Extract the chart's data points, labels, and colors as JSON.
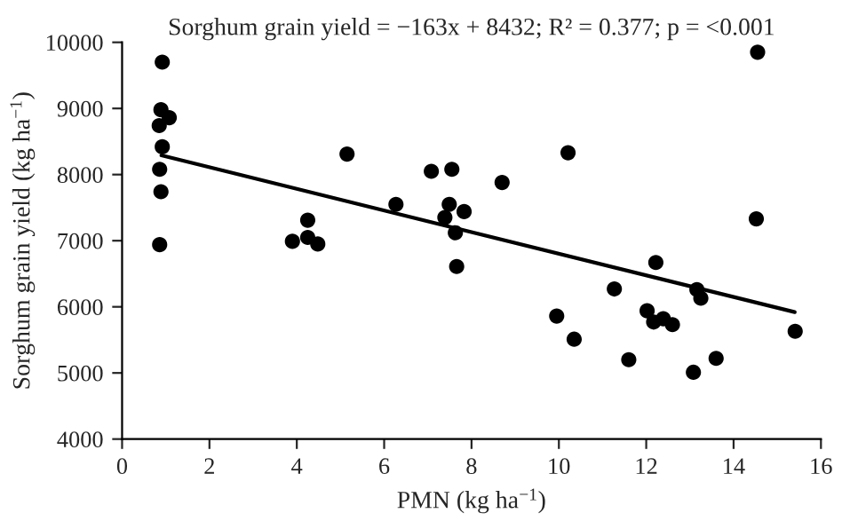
{
  "chart_data": {
    "type": "scatter",
    "title": "Sorghum grain yield = −163x + 8432; R² = 0.377; p = <0.001",
    "xlabel": "PMN (kg ha$^{−1}$)",
    "ylabel": "Sorghum grain yield (kg ha$^{−1}$)",
    "series": [
      {
        "color": "#000000",
        "marker": "circle",
        "x": [
          0.92,
          0.89,
          0.85,
          1.08,
          0.92,
          0.86,
          0.89,
          0.86,
          3.9,
          4.25,
          4.25,
          4.48,
          5.15,
          6.27,
          7.08,
          7.55,
          7.49,
          7.39,
          7.83,
          7.63,
          7.66,
          8.7,
          10.21,
          14.55,
          14.52,
          12.22,
          11.27,
          9.95,
          10.35,
          12.02,
          12.17,
          12.39,
          12.6,
          11.6,
          13.08,
          13.6,
          13.16,
          13.25,
          15.41
        ],
        "values": [
          9700,
          8980,
          8740,
          8860,
          8420,
          8080,
          7740,
          6940,
          6990,
          7310,
          7050,
          6950,
          8310,
          7550,
          8050,
          8080,
          7550,
          7350,
          7440,
          7120,
          6610,
          7880,
          8330,
          9850,
          7330,
          6670,
          6270,
          5860,
          5510,
          5940,
          5770,
          5820,
          5730,
          5200,
          5010,
          5220,
          6260,
          6130,
          5630
        ]
      },
      {
        "type": "line",
        "color": "#000000",
        "line_style": "solid",
        "x": [
          0.9,
          15.4
        ],
        "values": [
          8290,
          5920
        ]
      }
    ],
    "xlim": [
      0,
      16
    ],
    "xticks": [
      0,
      2,
      4,
      6,
      8,
      10,
      12,
      14,
      16
    ],
    "ylim": [
      4000,
      10000
    ],
    "yticks": [
      4000,
      5000,
      6000,
      7000,
      8000,
      9000,
      10000
    ],
    "grid": false,
    "legend": false
  }
}
